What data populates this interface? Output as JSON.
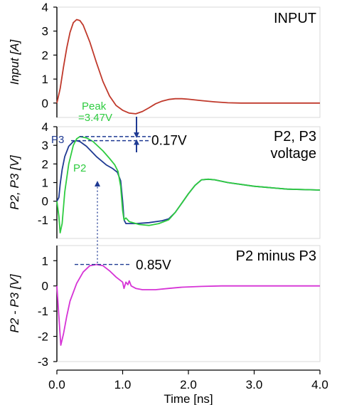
{
  "chart_data": [
    {
      "type": "line",
      "panel": "top",
      "title": "INPUT",
      "ylabel": "Input [A]",
      "ylim": [
        -0.6,
        4
      ],
      "yticks": [
        0,
        1,
        2,
        3,
        4
      ],
      "xlim": [
        0,
        4
      ],
      "series": [
        {
          "color": "#c0392b",
          "points": [
            [
              0.0,
              0.0
            ],
            [
              0.05,
              0.6
            ],
            [
              0.1,
              1.5
            ],
            [
              0.15,
              2.3
            ],
            [
              0.2,
              2.95
            ],
            [
              0.25,
              3.35
            ],
            [
              0.3,
              3.48
            ],
            [
              0.35,
              3.44
            ],
            [
              0.4,
              3.25
            ],
            [
              0.5,
              2.55
            ],
            [
              0.6,
              1.7
            ],
            [
              0.7,
              0.9
            ],
            [
              0.8,
              0.3
            ],
            [
              0.9,
              -0.1
            ],
            [
              1.0,
              -0.3
            ],
            [
              1.1,
              -0.42
            ],
            [
              1.2,
              -0.45
            ],
            [
              1.3,
              -0.35
            ],
            [
              1.4,
              -0.2
            ],
            [
              1.5,
              -0.03
            ],
            [
              1.6,
              0.08
            ],
            [
              1.7,
              0.15
            ],
            [
              1.8,
              0.18
            ],
            [
              1.9,
              0.18
            ],
            [
              2.0,
              0.16
            ],
            [
              2.2,
              0.1
            ],
            [
              2.4,
              0.05
            ],
            [
              2.6,
              0.01
            ],
            [
              2.8,
              0.0
            ],
            [
              3.0,
              0.0
            ],
            [
              3.5,
              0.0
            ],
            [
              4.0,
              0.0
            ]
          ]
        }
      ]
    },
    {
      "type": "line",
      "panel": "middle",
      "title": "P2, P3 voltage",
      "title_lines": [
        "P2, P3",
        "voltage"
      ],
      "ylabel": "P2, P3 [V]",
      "ylim": [
        -2,
        4
      ],
      "yticks": [
        -1,
        0,
        1,
        2,
        3,
        4
      ],
      "xlim": [
        0,
        4
      ],
      "series": [
        {
          "name": "P3",
          "color": "#1f3a93",
          "points": [
            [
              0.0,
              0.0
            ],
            [
              0.03,
              0.2
            ],
            [
              0.05,
              0.9
            ],
            [
              0.08,
              1.7
            ],
            [
              0.12,
              2.4
            ],
            [
              0.18,
              2.95
            ],
            [
              0.25,
              3.2
            ],
            [
              0.3,
              3.25
            ],
            [
              0.35,
              3.2
            ],
            [
              0.45,
              2.95
            ],
            [
              0.6,
              2.4
            ],
            [
              0.75,
              1.95
            ],
            [
              0.85,
              1.75
            ],
            [
              0.92,
              1.55
            ],
            [
              0.97,
              1.1
            ],
            [
              1.0,
              0.0
            ],
            [
              1.02,
              -1.0
            ],
            [
              1.05,
              -1.2
            ],
            [
              1.2,
              -1.2
            ],
            [
              1.4,
              -1.15
            ],
            [
              1.6,
              -1.05
            ],
            [
              1.7,
              -0.95
            ],
            [
              1.8,
              -0.6
            ],
            [
              1.9,
              -0.1
            ],
            [
              2.0,
              0.4
            ],
            [
              2.1,
              0.85
            ],
            [
              2.2,
              1.15
            ],
            [
              2.3,
              1.18
            ],
            [
              2.4,
              1.15
            ],
            [
              2.6,
              1.0
            ],
            [
              3.0,
              0.8
            ],
            [
              3.5,
              0.65
            ],
            [
              4.0,
              0.6
            ]
          ]
        },
        {
          "name": "P2",
          "color": "#2ecc40",
          "points": [
            [
              0.0,
              0.0
            ],
            [
              0.03,
              -0.8
            ],
            [
              0.05,
              -1.7
            ],
            [
              0.08,
              -1.2
            ],
            [
              0.12,
              0.5
            ],
            [
              0.18,
              2.0
            ],
            [
              0.25,
              3.0
            ],
            [
              0.3,
              3.35
            ],
            [
              0.35,
              3.47
            ],
            [
              0.45,
              3.4
            ],
            [
              0.55,
              3.2
            ],
            [
              0.7,
              2.7
            ],
            [
              0.8,
              2.3
            ],
            [
              0.88,
              1.95
            ],
            [
              0.93,
              1.6
            ],
            [
              0.97,
              0.8
            ],
            [
              1.0,
              -0.5
            ],
            [
              1.02,
              -1.0
            ],
            [
              1.05,
              -0.9
            ],
            [
              1.1,
              -1.1
            ],
            [
              1.25,
              -1.25
            ],
            [
              1.4,
              -1.3
            ],
            [
              1.55,
              -1.2
            ],
            [
              1.7,
              -1.0
            ],
            [
              1.8,
              -0.6
            ],
            [
              1.9,
              -0.1
            ],
            [
              2.0,
              0.4
            ],
            [
              2.1,
              0.85
            ],
            [
              2.2,
              1.15
            ],
            [
              2.3,
              1.18
            ],
            [
              2.4,
              1.15
            ],
            [
              2.6,
              1.0
            ],
            [
              3.0,
              0.8
            ],
            [
              3.5,
              0.65
            ],
            [
              4.0,
              0.6
            ]
          ]
        }
      ],
      "annotations": {
        "peak_label_lines": [
          "Peak",
          "=3.47V"
        ],
        "diff_label": "0.17V",
        "p3_label": "P3",
        "p2_label": "P2"
      }
    },
    {
      "type": "line",
      "panel": "bottom",
      "title": "P2 minus P3",
      "ylabel": "P2 - P3 [V]",
      "ylim": [
        -3,
        1.6
      ],
      "yticks": [
        -3,
        -2,
        -1,
        0,
        1
      ],
      "xlim": [
        0,
        4
      ],
      "xticks": [
        "0.0",
        "1.0",
        "2.0",
        "3.0",
        "4.0"
      ],
      "xlabel": "Time [ns]",
      "series": [
        {
          "color": "#d633d6",
          "points": [
            [
              0.0,
              0.0
            ],
            [
              0.03,
              -1.2
            ],
            [
              0.06,
              -2.35
            ],
            [
              0.1,
              -1.9
            ],
            [
              0.15,
              -1.2
            ],
            [
              0.2,
              -0.6
            ],
            [
              0.3,
              0.1
            ],
            [
              0.4,
              0.55
            ],
            [
              0.5,
              0.8
            ],
            [
              0.6,
              0.85
            ],
            [
              0.7,
              0.8
            ],
            [
              0.8,
              0.6
            ],
            [
              0.9,
              0.35
            ],
            [
              1.0,
              0.15
            ],
            [
              1.02,
              -0.1
            ],
            [
              1.05,
              0.15
            ],
            [
              1.08,
              0.05
            ],
            [
              1.1,
              0.2
            ],
            [
              1.13,
              0.0
            ],
            [
              1.2,
              -0.1
            ],
            [
              1.3,
              -0.15
            ],
            [
              1.5,
              -0.15
            ],
            [
              1.7,
              -0.1
            ],
            [
              1.9,
              -0.05
            ],
            [
              2.2,
              -0.02
            ],
            [
              2.5,
              0.0
            ],
            [
              3.0,
              0.0
            ],
            [
              4.0,
              0.0
            ]
          ]
        }
      ],
      "annotations": {
        "diff_label": "0.85V"
      }
    }
  ]
}
